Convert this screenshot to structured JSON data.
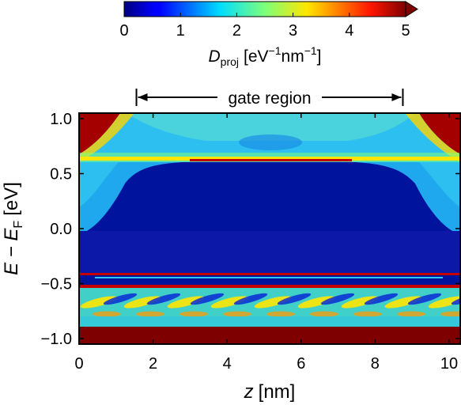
{
  "chart_data": {
    "type": "heatmap",
    "title": "",
    "xlabel": {
      "var": "z",
      "unit": "[nm]"
    },
    "ylabel": {
      "prefix": "E − E",
      "sub": "F",
      "unit": "[eV]"
    },
    "xlim": [
      0,
      10.3
    ],
    "ylim": [
      -1.05,
      1.05
    ],
    "xticks": [
      0,
      2,
      4,
      6,
      8,
      10
    ],
    "xtick_labels": [
      "0",
      "2",
      "4",
      "6",
      "8",
      "10"
    ],
    "yticks": [
      -1.0,
      -0.5,
      0.0,
      0.5,
      1.0
    ],
    "ytick_labels": [
      "−1.0",
      "−0.5",
      "0.0",
      "0.5",
      "1.0"
    ],
    "colorbar": {
      "label_var": "D",
      "label_sub": "proj",
      "label_unit_parts": [
        "[eV",
        "−1",
        "nm",
        "−1",
        "]"
      ],
      "range": [
        0,
        5
      ],
      "ticks": [
        0,
        1,
        2,
        3,
        4,
        5
      ],
      "tick_labels": [
        "0",
        "1",
        "2",
        "3",
        "4",
        "5"
      ],
      "extend": "max",
      "colormap": "jet"
    },
    "annotation": {
      "text": "gate region",
      "x_start": 1.55,
      "x_end": 8.75
    },
    "features": {
      "gap_top_center_eV": 0.59,
      "gap_top_edge_eV": 0.58,
      "gap_bottom_eV": -0.45,
      "midgap_line_eV": -0.43,
      "lower_band_start_eV": -0.52,
      "lower_band_end_eV": -0.9,
      "high_density_below_eV": -0.9
    }
  }
}
